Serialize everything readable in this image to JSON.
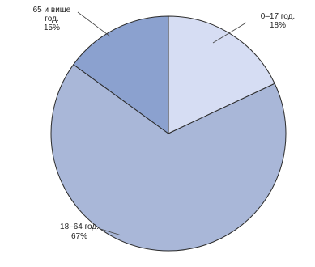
{
  "chart_data": {
    "type": "pie",
    "title": "",
    "slices": [
      {
        "label_lines": [
          "0–17 год.",
          "18%"
        ],
        "value": 18,
        "color": "#d6ddf3"
      },
      {
        "label_lines": [
          "18–64 год.",
          "67%"
        ],
        "value": 67,
        "color": "#a9b7d8"
      },
      {
        "label_lines": [
          "65 и више",
          "год.",
          "15%"
        ],
        "value": 15,
        "color": "#8ba1cf"
      }
    ],
    "start_angle": "12 o'clock",
    "direction": "clockwise",
    "edge_color": "#2b2b2b",
    "leader_color": "#444444"
  }
}
